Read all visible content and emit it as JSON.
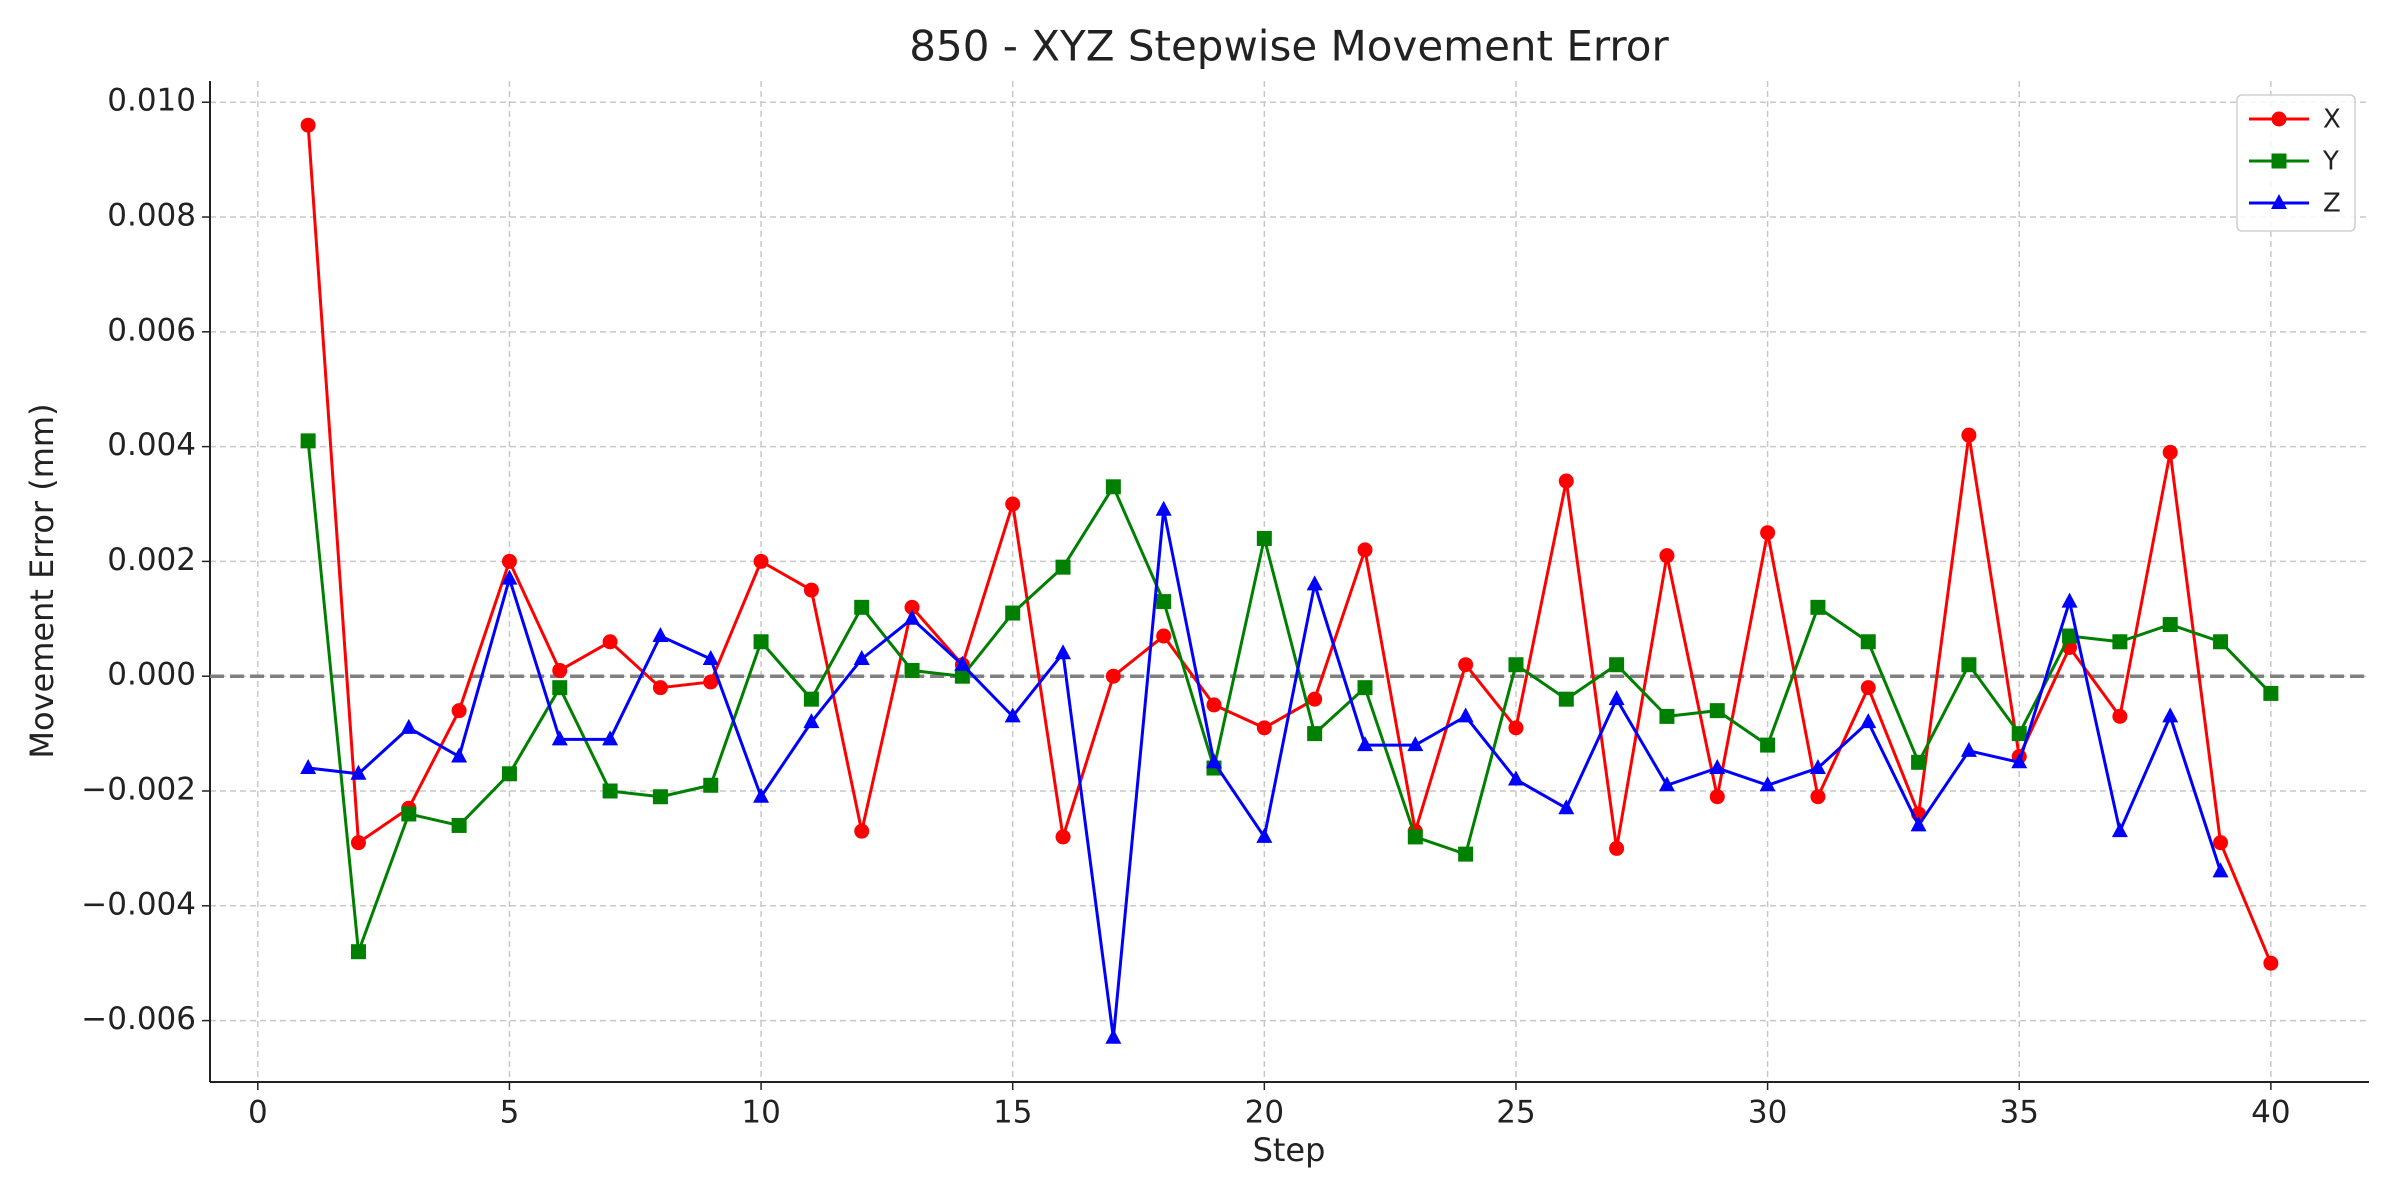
{
  "chart_data": {
    "type": "line",
    "title": "850 - XYZ Stepwise Movement Error",
    "x_label": "Step",
    "y_label": "Movement Error (mm)",
    "x": [
      1,
      2,
      3,
      4,
      5,
      6,
      7,
      8,
      9,
      10,
      11,
      12,
      13,
      14,
      15,
      16,
      17,
      18,
      19,
      20,
      21,
      22,
      23,
      24,
      25,
      26,
      27,
      28,
      29,
      30,
      31,
      32,
      33,
      34,
      35,
      36,
      37,
      38,
      39,
      40
    ],
    "series": [
      {
        "name": "X",
        "color": "#ff0000",
        "marker": "circle",
        "values": [
          0.0096,
          -0.0029,
          -0.0023,
          -0.0006,
          0.002,
          0.0001,
          0.0006,
          -0.0002,
          -0.0001,
          0.002,
          0.0015,
          -0.0027,
          0.0012,
          0.0002,
          0.003,
          -0.0028,
          0.0,
          0.0007,
          -0.0005,
          -0.0009,
          -0.0004,
          0.0022,
          -0.0027,
          0.0002,
          -0.0009,
          0.0034,
          -0.003,
          0.0021,
          -0.0021,
          0.0025,
          -0.0021,
          -0.0002,
          -0.0024,
          0.0042,
          -0.0014,
          0.0005,
          -0.0007,
          0.0039,
          -0.0029,
          -0.005
        ]
      },
      {
        "name": "Y",
        "color": "#008000",
        "marker": "square",
        "values": [
          0.0041,
          -0.0048,
          -0.0024,
          -0.0026,
          -0.0017,
          -0.0002,
          -0.002,
          -0.0021,
          -0.0019,
          0.0006,
          -0.0004,
          0.0012,
          0.0001,
          0.0,
          0.0011,
          0.0019,
          0.0033,
          0.0013,
          -0.0016,
          0.0024,
          -0.001,
          -0.0002,
          -0.0028,
          -0.0031,
          0.0002,
          -0.0004,
          0.0002,
          -0.0007,
          -0.0006,
          -0.0012,
          0.0012,
          0.0006,
          -0.0015,
          0.0002,
          -0.001,
          0.0007,
          0.0006,
          0.0009,
          0.0006,
          -0.0003
        ]
      },
      {
        "name": "Z",
        "color": "#0000ff",
        "marker": "triangle",
        "values": [
          -0.0016,
          -0.0017,
          -0.0009,
          -0.0014,
          0.0017,
          -0.0011,
          -0.0011,
          0.0007,
          0.0003,
          -0.0021,
          -0.0008,
          0.0003,
          0.001,
          0.0002,
          -0.0007,
          0.0004,
          -0.0063,
          0.0029,
          -0.0015,
          -0.0028,
          0.0016,
          -0.0012,
          -0.0012,
          -0.0007,
          -0.0018,
          -0.0023,
          -0.0004,
          -0.0019,
          -0.0016,
          -0.0019,
          -0.0016,
          -0.0008,
          -0.0026,
          -0.0013,
          -0.0015,
          0.0013,
          -0.0027,
          -0.0007,
          -0.0034,
          null
        ]
      }
    ],
    "xlim": [
      -0.95,
      41.95
    ],
    "ylim": [
      -0.00707,
      0.01037
    ],
    "xticks": [
      0,
      5,
      10,
      15,
      20,
      25,
      30,
      35,
      40
    ],
    "yticks": [
      {
        "value": -0.006,
        "label": "−0.006"
      },
      {
        "value": -0.004,
        "label": "−0.004"
      },
      {
        "value": -0.002,
        "label": "−0.002"
      },
      {
        "value": 0,
        "label": "0.000"
      },
      {
        "value": 0.002,
        "label": "0.002"
      },
      {
        "value": 0.004,
        "label": "0.004"
      },
      {
        "value": 0.006,
        "label": "0.006"
      },
      {
        "value": 0.008,
        "label": "0.008"
      },
      {
        "value": 0.01,
        "label": "0.010"
      }
    ],
    "grid": true,
    "hline": 0,
    "legend": "upper right"
  }
}
